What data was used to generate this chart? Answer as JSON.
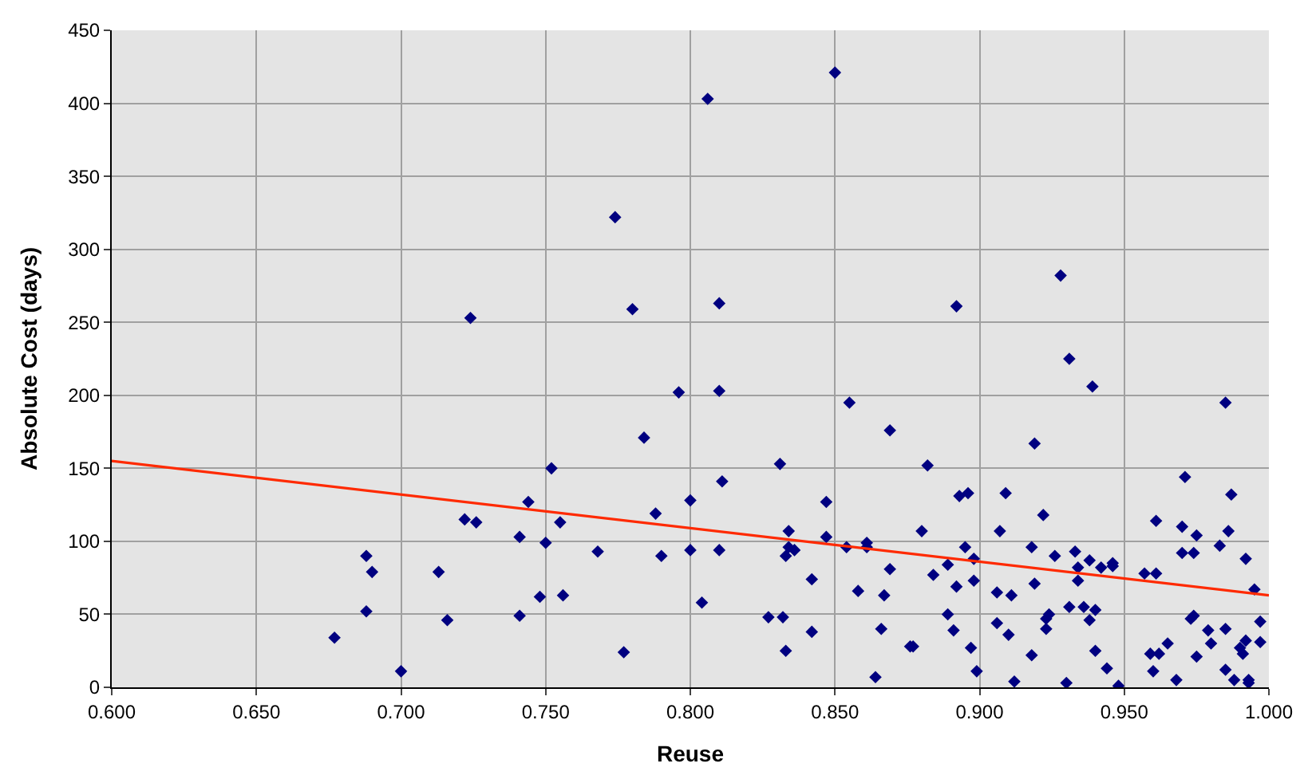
{
  "chart_data": {
    "type": "scatter",
    "xlabel": "Reuse",
    "ylabel": "Absolute Cost (days)",
    "xlim": [
      0.6,
      1.0
    ],
    "ylim": [
      0,
      450
    ],
    "xticks": [
      {
        "value": 0.6,
        "label": "0.600"
      },
      {
        "value": 0.65,
        "label": "0.650"
      },
      {
        "value": 0.7,
        "label": "0.700"
      },
      {
        "value": 0.75,
        "label": "0.750"
      },
      {
        "value": 0.8,
        "label": "0.800"
      },
      {
        "value": 0.85,
        "label": "0.850"
      },
      {
        "value": 0.9,
        "label": "0.900"
      },
      {
        "value": 0.95,
        "label": "0.950"
      },
      {
        "value": 1.0,
        "label": "1.000"
      }
    ],
    "yticks": [
      0,
      50,
      100,
      150,
      200,
      250,
      300,
      350,
      400,
      450
    ],
    "grid": true,
    "series": [
      {
        "color": "#000080",
        "marker": "diamond",
        "x": [
          0.806,
          0.774,
          0.724,
          0.78,
          0.81,
          0.85,
          0.892,
          0.928,
          0.931,
          0.939,
          0.855,
          0.985,
          0.796,
          0.81,
          0.784,
          0.811,
          0.752,
          0.744,
          0.8,
          0.788,
          0.722,
          0.726,
          0.755,
          0.741,
          0.75,
          0.768,
          0.79,
          0.8,
          0.81,
          0.688,
          0.69,
          0.713,
          0.688,
          0.677,
          0.7,
          0.716,
          0.741,
          0.748,
          0.756,
          0.777,
          0.804,
          0.827,
          0.831,
          0.869,
          0.919,
          0.882,
          0.847,
          0.893,
          0.896,
          0.909,
          0.922,
          0.971,
          0.987,
          0.834,
          0.847,
          0.88,
          0.907,
          0.961,
          0.97,
          0.975,
          0.986,
          0.833,
          0.834,
          0.836,
          0.854,
          0.861,
          0.861,
          0.895,
          0.898,
          0.918,
          0.926,
          0.933,
          0.934,
          0.938,
          0.942,
          0.946,
          0.946,
          0.97,
          0.974,
          0.983,
          0.992,
          0.995,
          0.957,
          0.961,
          0.842,
          0.869,
          0.884,
          0.889,
          0.898,
          0.906,
          0.911,
          0.919,
          0.934,
          0.858,
          0.867,
          0.892,
          0.832,
          0.889,
          0.924,
          0.923,
          0.931,
          0.936,
          0.94,
          0.938,
          0.974,
          0.973,
          0.997,
          0.842,
          0.866,
          0.891,
          0.906,
          0.91,
          0.923,
          0.979,
          0.985,
          0.98,
          0.965,
          0.992,
          0.997,
          0.833,
          0.876,
          0.877,
          0.897,
          0.94,
          0.959,
          0.962,
          0.99,
          0.991,
          0.918,
          0.975,
          0.96,
          0.944,
          0.899,
          0.985,
          0.864,
          0.968,
          0.988,
          0.993,
          0.993,
          0.912,
          0.93,
          0.948
        ],
        "values": [
          403,
          322,
          253,
          259,
          263,
          421,
          261,
          282,
          225,
          206,
          195,
          195,
          202,
          203,
          171,
          141,
          150,
          127,
          128,
          119,
          115,
          113,
          113,
          103,
          99,
          93,
          90,
          94,
          94,
          90,
          79,
          79,
          52,
          34,
          11,
          46,
          49,
          62,
          63,
          24,
          58,
          48,
          153,
          176,
          167,
          152,
          127,
          131,
          133,
          133,
          118,
          144,
          132,
          107,
          103,
          107,
          107,
          114,
          110,
          104,
          107,
          90,
          96,
          94,
          96,
          99,
          96,
          96,
          88,
          96,
          90,
          93,
          82,
          87,
          82,
          83,
          85,
          92,
          92,
          97,
          88,
          67,
          78,
          78,
          74,
          81,
          77,
          84,
          73,
          65,
          63,
          71,
          73,
          66,
          63,
          69,
          48,
          50,
          50,
          47,
          55,
          55,
          53,
          46,
          49,
          47,
          45,
          38,
          40,
          39,
          44,
          36,
          40,
          39,
          40,
          30,
          30,
          32,
          31,
          25,
          28,
          28,
          27,
          25,
          23,
          23,
          27,
          23,
          22,
          21,
          11,
          13,
          11,
          12,
          7,
          5,
          5,
          5,
          3,
          4,
          3,
          1
        ]
      },
      {
        "type": "line",
        "color": "#ff2a00",
        "marker": "none",
        "x": [
          0.6,
          1.0
        ],
        "values": [
          155,
          63
        ]
      }
    ]
  }
}
